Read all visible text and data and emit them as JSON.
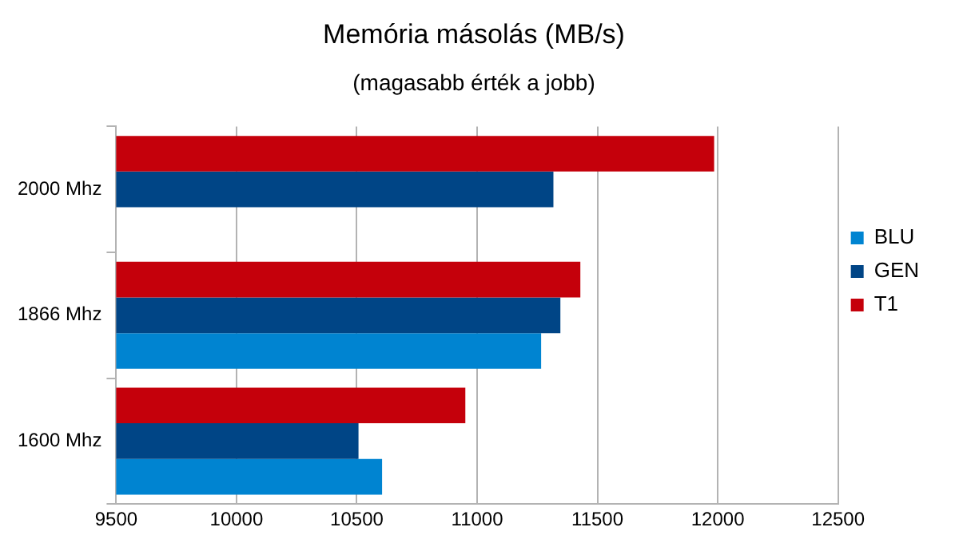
{
  "chart_data": {
    "type": "bar",
    "orientation": "horizontal",
    "title": "Memória másolás (MB/s)",
    "subtitle": "(magasabb érték a jobb)",
    "categories": [
      "2000 Mhz",
      "1866 Mhz",
      "1600 Mhz"
    ],
    "series": [
      {
        "name": "BLU",
        "color": "#0084d1",
        "values": [
          null,
          11266,
          10605
        ]
      },
      {
        "name": "GEN",
        "color": "#004586",
        "values": [
          11317,
          11346,
          10507
        ]
      },
      {
        "name": "T1",
        "color": "#c5000b",
        "values": [
          11985,
          11429,
          10951
        ]
      }
    ],
    "xlim": [
      9500,
      12500
    ],
    "xticks": [
      9500,
      10000,
      10500,
      11000,
      11500,
      12000,
      12500
    ],
    "grid": "x",
    "legend": "right"
  }
}
